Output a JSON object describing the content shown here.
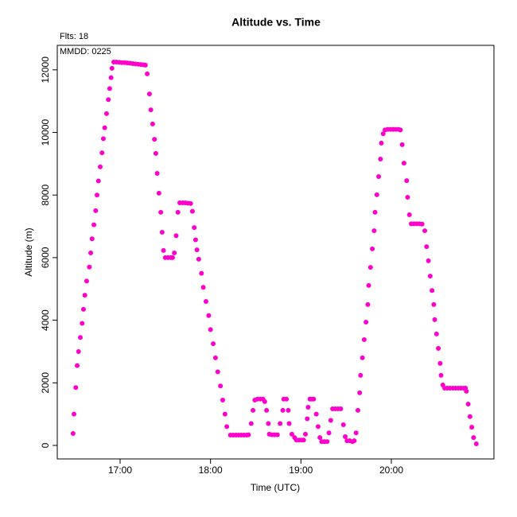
{
  "chart_data": {
    "type": "scatter",
    "title": "Altitude  vs. Time",
    "x_label": "Time (UTC)",
    "y_label": "Altitude (m)",
    "annotations": [
      "Flts: 18",
      "MMDD: 0225"
    ],
    "color": "#ff00cc",
    "xlim": [
      16.305,
      21.135
    ],
    "ylim": [
      -432,
      12783
    ],
    "xticks": [
      {
        "value": 17,
        "label": "17:00"
      },
      {
        "value": 18,
        "label": "18:00"
      },
      {
        "value": 19,
        "label": "19:00"
      },
      {
        "value": 20,
        "label": "20:00"
      }
    ],
    "yticks": [
      0,
      2000,
      4000,
      6000,
      8000,
      10000,
      12000
    ],
    "x": [
      16.48,
      16.49,
      16.51,
      16.525,
      16.54,
      16.56,
      16.58,
      16.595,
      16.61,
      16.63,
      16.66,
      16.675,
      16.69,
      16.71,
      16.73,
      16.745,
      16.76,
      16.78,
      16.8,
      16.815,
      16.83,
      16.85,
      16.87,
      16.885,
      16.9,
      16.91,
      16.93,
      16.96,
      16.99,
      17.02,
      17.05,
      17.08,
      17.11,
      17.14,
      17.17,
      17.2,
      17.23,
      17.26,
      17.28,
      17.3,
      17.325,
      17.34,
      17.36,
      17.38,
      17.395,
      17.41,
      17.43,
      17.45,
      17.465,
      17.48,
      17.5,
      17.53,
      17.56,
      17.58,
      17.6,
      17.62,
      17.64,
      17.66,
      17.69,
      17.72,
      17.75,
      17.78,
      17.8,
      17.82,
      17.835,
      17.85,
      17.87,
      17.9,
      17.92,
      17.95,
      17.98,
      18.0,
      18.03,
      18.055,
      18.08,
      18.11,
      18.135,
      18.16,
      18.18,
      18.22,
      18.25,
      18.28,
      18.31,
      18.34,
      18.37,
      18.4,
      18.42,
      18.45,
      18.47,
      18.49,
      18.52,
      18.55,
      18.58,
      18.6,
      18.62,
      18.64,
      18.65,
      18.68,
      18.71,
      18.74,
      18.77,
      18.8,
      18.81,
      18.84,
      18.86,
      18.87,
      18.9,
      18.93,
      18.95,
      18.98,
      19.01,
      19.03,
      19.05,
      19.07,
      19.08,
      19.1,
      19.12,
      19.14,
      19.17,
      19.19,
      19.21,
      19.23,
      19.26,
      19.29,
      19.31,
      19.33,
      19.35,
      19.38,
      19.41,
      19.44,
      19.47,
      19.49,
      19.51,
      19.54,
      19.57,
      19.59,
      19.61,
      19.63,
      19.65,
      19.66,
      19.68,
      19.7,
      19.72,
      19.74,
      19.75,
      19.77,
      19.79,
      19.81,
      19.82,
      19.84,
      19.86,
      19.88,
      19.89,
      19.91,
      19.93,
      19.96,
      19.99,
      20.02,
      20.05,
      20.08,
      20.1,
      20.12,
      20.14,
      20.17,
      20.18,
      20.2,
      20.22,
      20.25,
      20.28,
      20.31,
      20.34,
      20.37,
      20.39,
      20.41,
      20.43,
      20.45,
      20.47,
      20.48,
      20.5,
      20.52,
      20.54,
      20.55,
      20.57,
      20.59,
      20.62,
      20.65,
      20.68,
      20.71,
      20.74,
      20.77,
      20.8,
      20.82,
      20.83,
      20.85,
      20.87,
      20.89,
      20.91,
      20.94
    ],
    "values": [
      380,
      1000,
      1850,
      2550,
      3000,
      3450,
      3900,
      4350,
      4800,
      5250,
      5700,
      6150,
      6600,
      7050,
      7500,
      8000,
      8450,
      8900,
      9350,
      9800,
      10150,
      10600,
      11050,
      11400,
      11750,
      12050,
      12250,
      12250,
      12240,
      12230,
      12230,
      12220,
      12210,
      12200,
      12190,
      12180,
      12170,
      12160,
      12150,
      11870,
      11230,
      10720,
      10270,
      9780,
      9330,
      8690,
      8060,
      7450,
      6810,
      6230,
      6000,
      6000,
      6000,
      6000,
      6150,
      6700,
      7450,
      7750,
      7750,
      7750,
      7740,
      7730,
      7480,
      6960,
      6570,
      6250,
      5950,
      5500,
      5050,
      4600,
      4150,
      3700,
      3250,
      2800,
      2350,
      1900,
      1450,
      1000,
      600,
      330,
      330,
      330,
      330,
      330,
      330,
      330,
      340,
      700,
      1120,
      1450,
      1480,
      1480,
      1480,
      1400,
      1120,
      700,
      360,
      340,
      340,
      340,
      700,
      1120,
      1480,
      1480,
      1120,
      700,
      360,
      250,
      170,
      170,
      170,
      170,
      360,
      850,
      1220,
      1480,
      1480,
      1480,
      1000,
      600,
      250,
      120,
      120,
      120,
      400,
      800,
      1170,
      1170,
      1170,
      1170,
      660,
      280,
      150,
      150,
      120,
      150,
      400,
      1120,
      1680,
      2240,
      2800,
      3380,
      3940,
      4500,
      5110,
      5690,
      6280,
      6860,
      7450,
      8010,
      8590,
      9150,
      9660,
      9960,
      10080,
      10100,
      10100,
      10100,
      10100,
      10100,
      10080,
      9610,
      9020,
      8460,
      7930,
      7370,
      7080,
      7080,
      7080,
      7080,
      7070,
      6860,
      6350,
      5900,
      5410,
      4950,
      4500,
      4020,
      3560,
      3100,
      2620,
      2240,
      1930,
      1830,
      1830,
      1830,
      1830,
      1830,
      1830,
      1830,
      1830,
      1830,
      1730,
      1320,
      920,
      580,
      250,
      50
    ]
  }
}
